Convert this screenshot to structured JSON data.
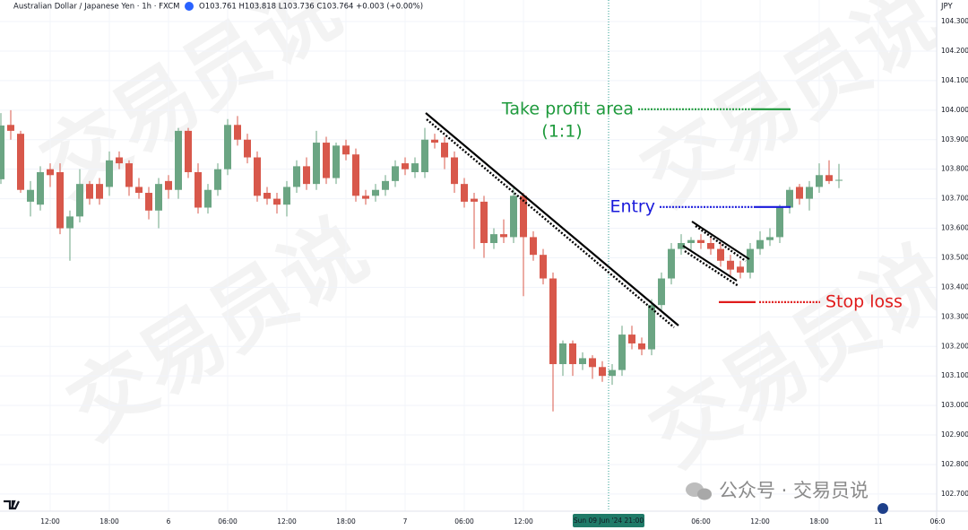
{
  "header": {
    "symbol": "Australian Dollar / Japanese Yen · 1h · FXCM",
    "ohlc": "O103.761 H103.818 L103.736 C103.764 +0.003 (+0.00%)"
  },
  "chart_data": {
    "type": "candlestick",
    "categories": [
      null,
      null,
      null,
      null,
      null,
      "12:00",
      null,
      null,
      null,
      null,
      null,
      "18:00",
      null,
      null,
      null,
      null,
      null,
      "6",
      null,
      null,
      null,
      null,
      null,
      "06:00",
      null,
      null,
      null,
      null,
      null,
      "12:00",
      null,
      null,
      null,
      null,
      null,
      "18:00",
      null,
      null,
      null,
      null,
      null,
      "7",
      null,
      null,
      null,
      null,
      null,
      "06:00",
      null,
      null,
      null,
      null,
      null,
      "12:00",
      null,
      null,
      null,
      null,
      null,
      null,
      null,
      null,
      "Sun 09 Jun '24 21:00",
      null,
      null,
      null,
      null,
      null,
      null,
      null,
      null,
      "06:00",
      null,
      null,
      null,
      null,
      null,
      "12:00",
      null,
      null,
      null,
      null,
      null,
      "18:00",
      null,
      null,
      null,
      null,
      null,
      "11",
      null,
      null,
      null,
      null,
      null,
      "06:0"
    ],
    "open": [
      103.766,
      103.95,
      103.92,
      103.69,
      103.68,
      103.8,
      103.79,
      103.6,
      103.64,
      103.75,
      103.75,
      103.74,
      103.84,
      103.82,
      103.74,
      103.72,
      103.66,
      103.76,
      103.73,
      103.93,
      103.79,
      103.67,
      103.73,
      103.8,
      103.95,
      103.9,
      103.84,
      103.72,
      103.7,
      103.68,
      103.74,
      103.81,
      103.75,
      103.89,
      103.77,
      103.88,
      103.85,
      103.71,
      103.71,
      103.73,
      103.76,
      103.82,
      103.79,
      103.79,
      103.9,
      103.89,
      103.84,
      103.75,
      103.7,
      103.69,
      103.55,
      103.58,
      103.57,
      103.71,
      103.57,
      103.51,
      103.43,
      103.14,
      103.21,
      103.14,
      103.16,
      103.13,
      103.1,
      103.12,
      103.24,
      103.21,
      103.19,
      103.34,
      103.43,
      103.53,
      103.55,
      103.56,
      103.55,
      103.53,
      103.49,
      103.47,
      103.45,
      103.53,
      103.56,
      103.57,
      103.67,
      103.74,
      103.7,
      103.74,
      103.78,
      103.761,
      null,
      null,
      null,
      null,
      null,
      null,
      null,
      null,
      null,
      null
    ],
    "high": [
      103.99,
      104.0,
      103.93,
      103.76,
      103.81,
      103.82,
      103.82,
      103.66,
      103.8,
      103.76,
      103.77,
      103.86,
      103.86,
      103.83,
      103.77,
      103.74,
      103.77,
      103.78,
      103.94,
      103.94,
      103.82,
      103.75,
      103.82,
      103.97,
      103.98,
      103.92,
      103.86,
      103.74,
      103.72,
      103.76,
      103.83,
      103.84,
      103.93,
      103.91,
      103.89,
      103.9,
      103.87,
      103.73,
      103.75,
      103.78,
      103.83,
      103.84,
      103.84,
      103.94,
      103.92,
      103.91,
      103.86,
      103.77,
      103.72,
      103.71,
      103.6,
      103.63,
      103.74,
      103.72,
      103.59,
      103.53,
      103.45,
      103.22,
      103.22,
      103.18,
      103.17,
      103.15,
      103.14,
      103.27,
      103.27,
      103.23,
      103.36,
      103.45,
      103.55,
      103.58,
      103.57,
      103.58,
      103.57,
      103.55,
      103.51,
      103.49,
      103.55,
      103.59,
      103.6,
      103.68,
      103.74,
      103.75,
      103.76,
      103.82,
      103.83,
      103.818,
      null,
      null,
      null,
      null,
      null,
      null,
      null,
      null,
      null,
      null
    ],
    "low": [
      103.75,
      103.9,
      103.72,
      103.64,
      103.66,
      103.74,
      103.58,
      103.49,
      103.62,
      103.68,
      103.68,
      103.71,
      103.8,
      103.71,
      103.7,
      103.63,
      103.6,
      103.7,
      103.7,
      103.77,
      103.65,
      103.65,
      103.71,
      103.78,
      103.88,
      103.82,
      103.69,
      103.68,
      103.65,
      103.64,
      103.72,
      103.73,
      103.73,
      103.75,
      103.75,
      103.83,
      103.69,
      103.68,
      103.69,
      103.71,
      103.74,
      103.78,
      103.77,
      103.77,
      103.87,
      103.8,
      103.72,
      103.67,
      103.53,
      103.5,
      103.53,
      103.55,
      103.55,
      103.37,
      103.49,
      103.41,
      102.98,
      103.1,
      103.1,
      103.12,
      103.09,
      103.08,
      103.07,
      103.1,
      103.19,
      103.17,
      103.17,
      103.32,
      103.41,
      103.51,
      103.52,
      103.53,
      103.51,
      103.47,
      103.44,
      103.43,
      103.43,
      103.51,
      103.54,
      103.55,
      103.65,
      103.68,
      103.66,
      103.72,
      103.75,
      103.736,
      null,
      null,
      null,
      null,
      null,
      null,
      null,
      null,
      null,
      null
    ],
    "close": [
      103.948,
      103.93,
      103.73,
      103.73,
      103.79,
      103.78,
      103.6,
      103.64,
      103.75,
      103.7,
      103.7,
      103.83,
      103.82,
      103.74,
      103.72,
      103.66,
      103.75,
      103.73,
      103.93,
      103.79,
      103.67,
      103.73,
      103.8,
      103.95,
      103.9,
      103.84,
      103.71,
      103.7,
      103.68,
      103.74,
      103.81,
      103.75,
      103.89,
      103.77,
      103.88,
      103.85,
      103.71,
      103.7,
      103.73,
      103.76,
      103.81,
      103.8,
      103.82,
      103.9,
      103.89,
      103.84,
      103.75,
      103.69,
      103.69,
      103.55,
      103.58,
      103.57,
      103.71,
      103.57,
      103.51,
      103.43,
      103.14,
      103.21,
      103.14,
      103.16,
      103.13,
      103.1,
      103.12,
      103.24,
      103.21,
      103.19,
      103.34,
      103.43,
      103.53,
      103.55,
      103.56,
      103.55,
      103.53,
      103.49,
      103.46,
      103.45,
      103.53,
      103.56,
      103.57,
      103.67,
      103.73,
      103.7,
      103.74,
      103.78,
      103.76,
      103.764,
      null,
      null,
      null,
      null,
      null,
      null,
      null,
      null,
      null,
      null
    ],
    "up_color": "#6ba583",
    "down_color": "#d8584b",
    "ylim": [
      102.642,
      104.373
    ],
    "yticks": [
      {
        "value": 102.7,
        "label": "102.700"
      },
      {
        "value": 102.8,
        "label": "102.800"
      },
      {
        "value": 102.9,
        "label": "102.900"
      },
      {
        "value": 103.0,
        "label": "103.000"
      },
      {
        "value": 103.1,
        "label": "103.100"
      },
      {
        "value": 103.2,
        "label": "103.200"
      },
      {
        "value": 103.3,
        "label": "103.300"
      },
      {
        "value": 103.4,
        "label": "103.400"
      },
      {
        "value": 103.5,
        "label": "103.500"
      },
      {
        "value": 103.6,
        "label": "103.600"
      },
      {
        "value": 103.7,
        "label": "103.700"
      },
      {
        "value": 103.8,
        "label": "103.800"
      },
      {
        "value": 103.9,
        "label": "103.900"
      },
      {
        "value": 104.0,
        "label": "104.000"
      },
      {
        "value": 104.1,
        "label": "104.100"
      },
      {
        "value": 104.2,
        "label": "104.200"
      },
      {
        "value": 104.3,
        "label": "104.300"
      }
    ],
    "y_axis_unit": "JPY",
    "grid": true,
    "crosshair_index": 62,
    "annotations": [
      {
        "text": "Take profit area",
        "subtext": "(1:1)",
        "value": 104.003,
        "color": "#1e9a3c"
      },
      {
        "text": "Entry",
        "value": 103.672,
        "color": "#1a1adb"
      },
      {
        "text": "Stop loss",
        "value": 103.35,
        "color": "#e01b1b"
      }
    ]
  },
  "watermark": "交易员说",
  "footer": "公众号 · 交易员说"
}
